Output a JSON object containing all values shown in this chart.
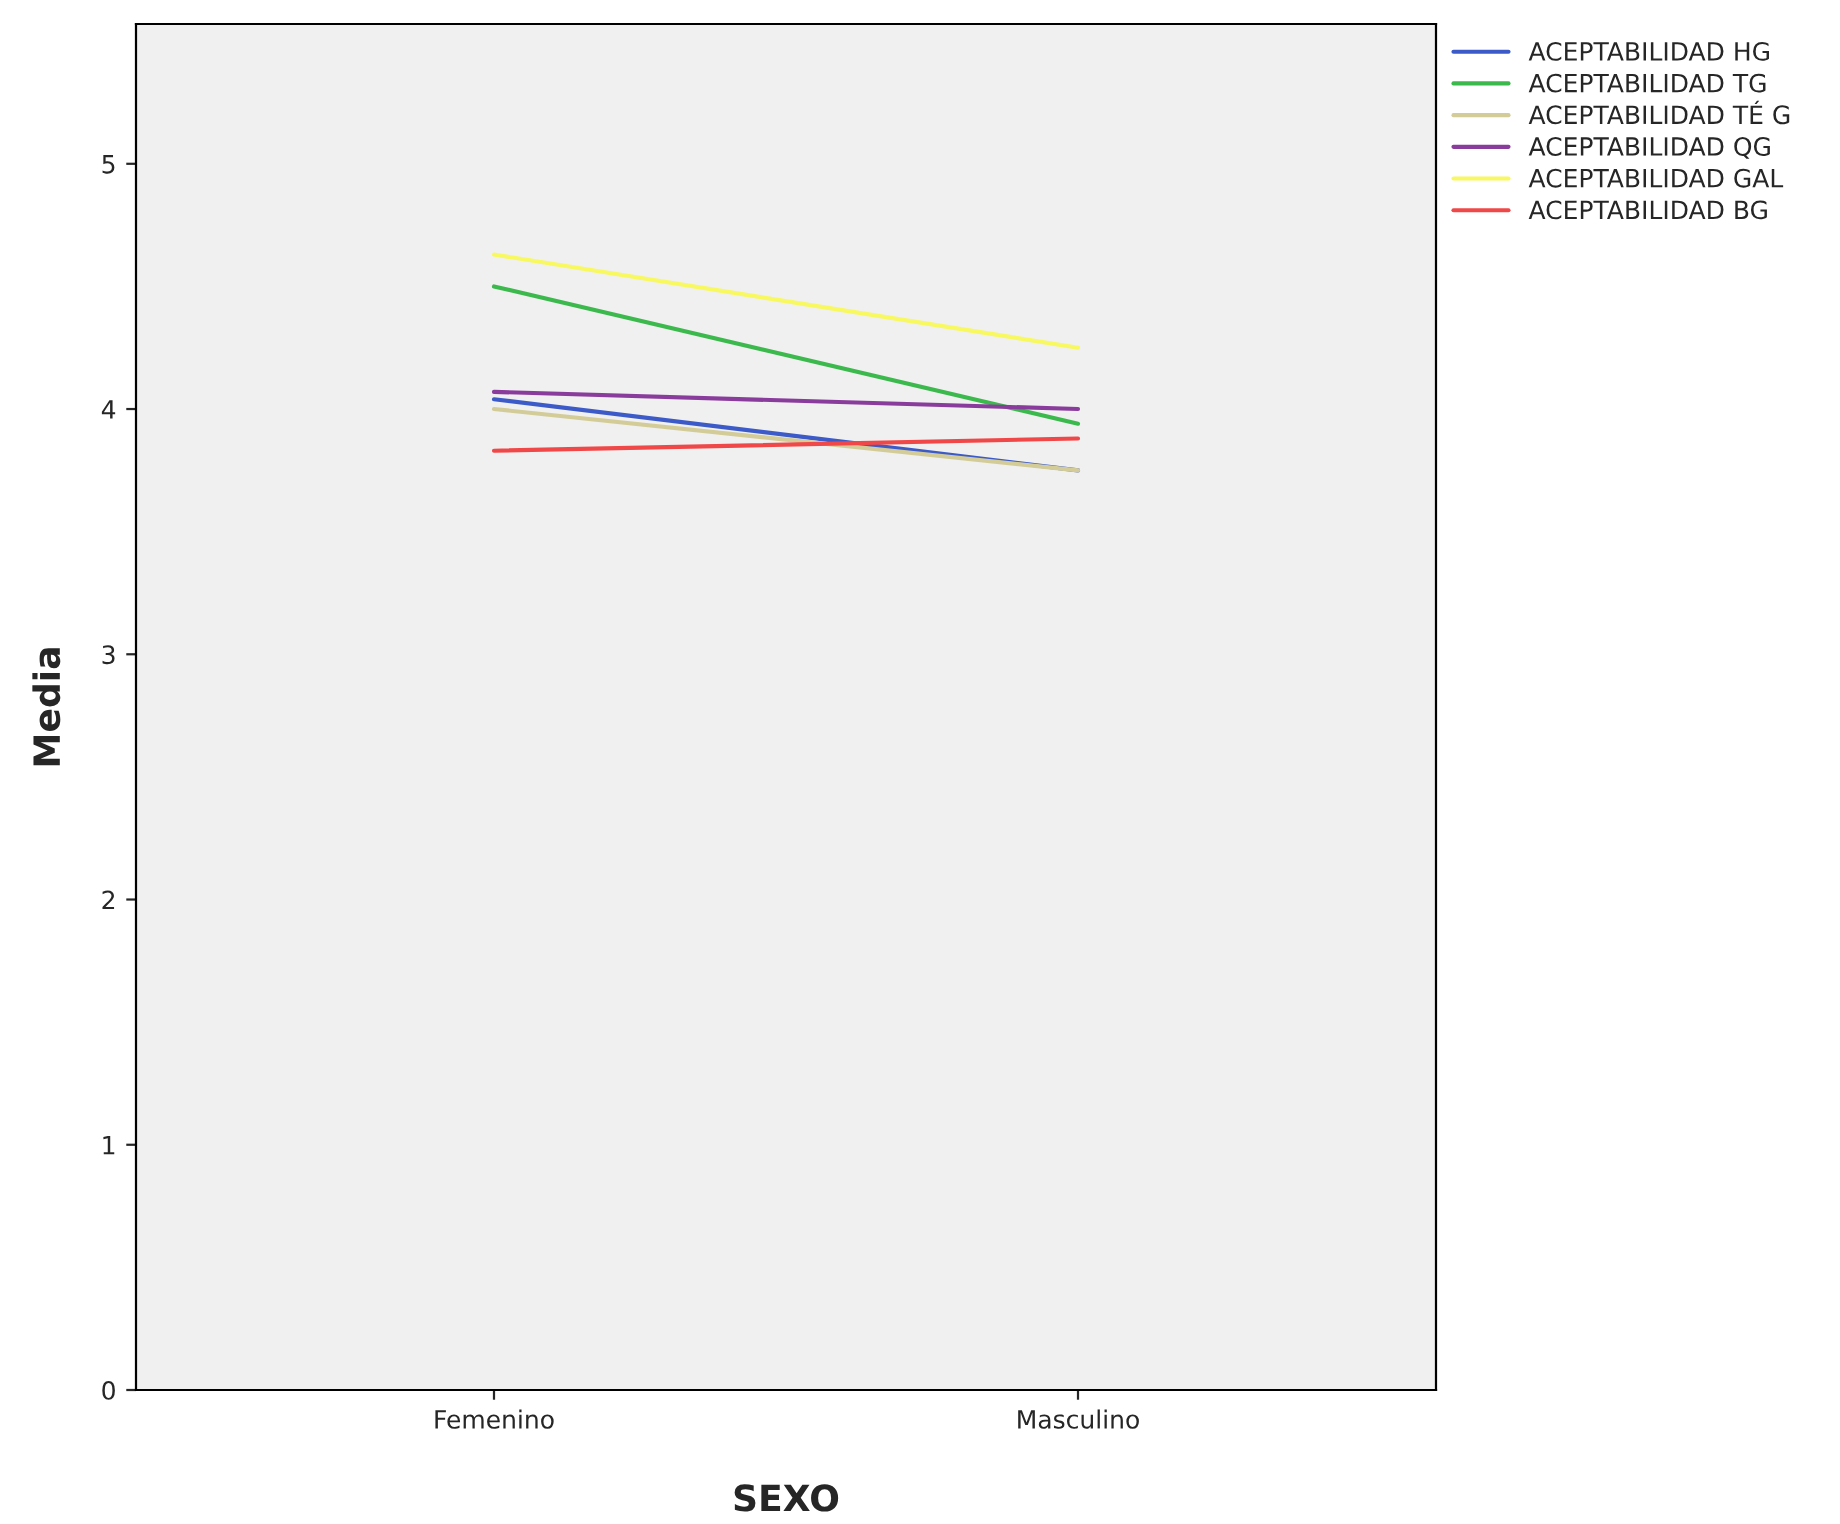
{
  "chart_data": {
    "type": "line",
    "xlabel": "SEXO",
    "ylabel": "Media",
    "categories": [
      "Femenino",
      "Masculino"
    ],
    "series": [
      {
        "name": "ACEPTABILIDAD HG",
        "color": "#3c5bc8",
        "values": [
          4.04,
          3.75
        ]
      },
      {
        "name": "ACEPTABILIDAD TG",
        "color": "#3cb94c",
        "values": [
          4.5,
          3.94
        ]
      },
      {
        "name": "ACEPTABILIDAD TÉ G",
        "color": "#d4cc98",
        "values": [
          4.0,
          3.75
        ]
      },
      {
        "name": "ACEPTABILIDAD QG",
        "color": "#8a3c9c",
        "values": [
          4.07,
          4.0
        ]
      },
      {
        "name": "ACEPTABILIDAD GAL",
        "color": "#f8f860",
        "values": [
          4.63,
          4.25
        ]
      },
      {
        "name": "ACEPTABILIDAD BG",
        "color": "#f04848",
        "values": [
          3.83,
          3.88
        ]
      }
    ],
    "ylim": [
      0,
      5.57
    ],
    "yticks": [
      0,
      1,
      2,
      3,
      4,
      5
    ],
    "grid": false,
    "legend": "top right",
    "marker": "none",
    "line_style": "solid"
  }
}
